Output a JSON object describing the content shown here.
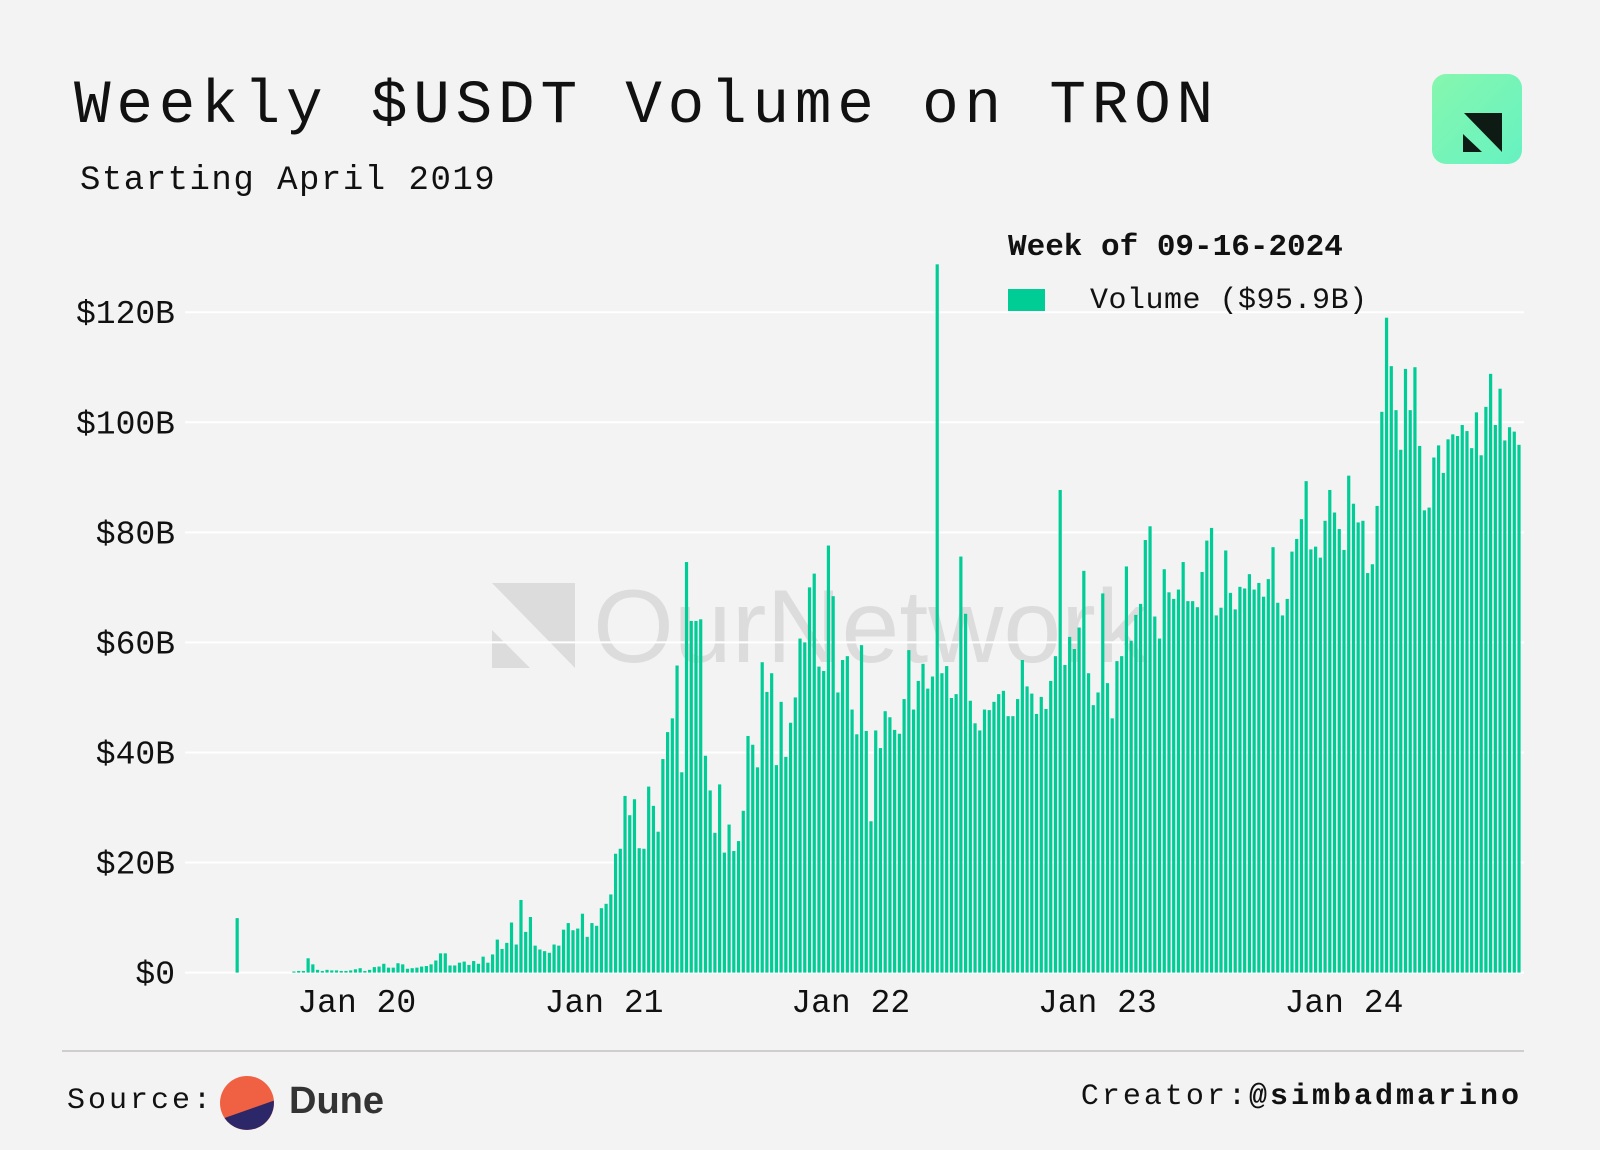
{
  "header": {
    "title": "Weekly $USDT Volume on TRON",
    "subtitle": "Starting April 2019"
  },
  "watermark": "OurNetwork",
  "footer": {
    "source_label": "Source:",
    "source_name": "Dune",
    "creator_label": "Creator:",
    "creator_handle": "@simbadmarino"
  },
  "colors": {
    "bar": "#00cc96",
    "gridline": "#ffffff",
    "background": "#f3f3f3",
    "dune_orange": "#f06143",
    "dune_navy": "#2b2768"
  },
  "chart_data": {
    "type": "bar",
    "title": "Weekly $USDT Volume on TRON",
    "subtitle": "Starting April 2019",
    "interval": "weekly",
    "last_week": "2024-09-16",
    "xlabel": "",
    "ylabel": "",
    "ylim": [
      0,
      120
    ],
    "y_unit": "billion USD",
    "grid": true,
    "legend": {
      "position": "top-right",
      "title": "Week of 09-16-2024",
      "entries": [
        {
          "name": "Volume",
          "value_label": "($95.9B)"
        }
      ]
    },
    "y_ticks": [
      {
        "value": 0,
        "label": "$0"
      },
      {
        "value": 20,
        "label": "$20B"
      },
      {
        "value": 40,
        "label": "$40B"
      },
      {
        "value": 60,
        "label": "$60B"
      },
      {
        "value": 80,
        "label": "$80B"
      },
      {
        "value": 100,
        "label": "$100B"
      },
      {
        "value": 120,
        "label": "$120B"
      }
    ],
    "x_ticks": [
      {
        "date": "2020-01-01",
        "label": "Jan 20"
      },
      {
        "date": "2021-01-01",
        "label": "Jan 21"
      },
      {
        "date": "2022-01-01",
        "label": "Jan 22"
      },
      {
        "date": "2023-01-01",
        "label": "Jan 23"
      },
      {
        "date": "2024-01-01",
        "label": "Jan 24"
      }
    ],
    "series": [
      {
        "name": "Volume",
        "values": [
          9.9,
          0,
          0,
          0,
          0,
          0,
          0,
          0,
          0,
          0,
          0,
          0,
          0.2,
          0.3,
          0.3,
          2.6,
          1.5,
          0.5,
          0.3,
          0.5,
          0.4,
          0.4,
          0.3,
          0.3,
          0.4,
          0.6,
          0.8,
          0.3,
          0.5,
          1.0,
          1.1,
          1.6,
          0.9,
          0.9,
          1.7,
          1.5,
          0.7,
          0.8,
          0.9,
          1.1,
          1.2,
          1.5,
          2.2,
          3.5,
          3.5,
          1.3,
          1.3,
          1.8,
          2.0,
          1.4,
          2.1,
          1.6,
          2.9,
          1.8,
          3.3,
          6.0,
          4.3,
          5.4,
          9.1,
          5.1,
          13.2,
          7.4,
          10.1,
          4.9,
          4.2,
          3.9,
          3.6,
          5.1,
          4.9,
          7.8,
          9.0,
          7.7,
          8.0,
          10.7,
          6.5,
          9.0,
          8.5,
          11.7,
          12.5,
          14.2,
          21.6,
          22.5,
          32.1,
          28.6,
          31.5,
          22.6,
          22.5,
          33.8,
          30.3,
          25.6,
          38.8,
          43.7,
          46.2,
          55.8,
          36.4,
          74.6,
          63.9,
          63.9,
          64.2,
          39.4,
          33.1,
          25.4,
          34.2,
          21.8,
          26.9,
          22.1,
          23.9,
          29.4,
          43.0,
          41.4,
          37.3,
          56.4,
          51.0,
          54.4,
          37.7,
          49.2,
          39.2,
          45.4,
          50.0,
          60.7,
          60.0,
          70.0,
          72.5,
          55.6,
          54.8,
          77.6,
          68.4,
          50.9,
          56.8,
          57.5,
          47.8,
          43.3,
          59.5,
          43.9,
          27.5,
          44.0,
          40.8,
          47.5,
          46.4,
          44.1,
          43.4,
          49.7,
          58.6,
          47.8,
          53.0,
          56.1,
          51.6,
          53.8,
          128.7,
          54.4,
          55.7,
          49.9,
          50.6,
          75.6,
          65.2,
          49.4,
          45.3,
          44.0,
          47.8,
          47.7,
          49.2,
          50.6,
          51.2,
          46.6,
          46.6,
          49.7,
          56.8,
          52.0,
          50.7,
          47.0,
          50.1,
          47.9,
          53.0,
          57.5,
          87.7,
          55.9,
          61.0,
          58.8,
          62.7,
          73.0,
          54.4,
          48.6,
          50.9,
          68.9,
          52.6,
          46.2,
          56.6,
          57.5,
          73.8,
          60.3,
          65.0,
          67.0,
          78.6,
          81.1,
          64.7,
          60.7,
          73.3,
          69.1,
          67.9,
          69.6,
          74.6,
          67.5,
          67.5,
          66.4,
          72.8,
          78.5,
          80.8,
          64.9,
          66.3,
          76.7,
          69.0,
          66.0,
          70.1,
          69.8,
          72.4,
          69.6,
          70.8,
          68.3,
          71.5,
          77.3,
          67.2,
          64.9,
          67.9,
          76.5,
          78.8,
          82.4,
          89.3,
          76.9,
          77.4,
          75.4,
          82.1,
          87.7,
          83.6,
          80.6,
          76.8,
          90.3,
          85.2,
          81.8,
          82.1,
          72.6,
          74.2,
          84.8,
          101.9,
          119.0,
          110.2,
          102.2,
          95.0,
          109.7,
          102.2,
          110.0,
          95.7,
          84.0,
          84.5,
          93.6,
          95.8,
          90.8,
          96.9,
          97.8,
          97.5,
          99.5,
          98.4,
          95.3,
          101.8,
          94.0,
          102.8,
          108.8,
          99.5,
          106.1,
          96.7,
          99.1,
          98.3,
          95.9
        ]
      }
    ]
  }
}
